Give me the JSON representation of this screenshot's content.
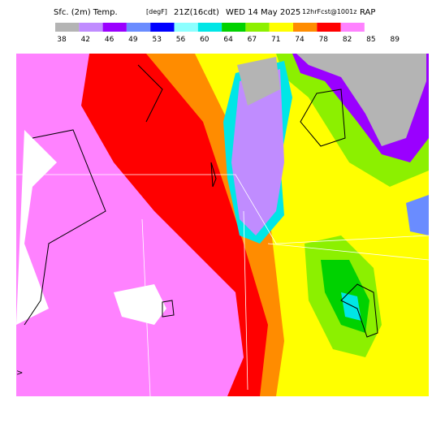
{
  "header": {
    "field": "Sfc. (2m) Temp.",
    "units": "[degF]",
    "valid": "21Z(16cdt)",
    "date": "WED 14 May 2025",
    "forecast": "12hrFcst@1001z",
    "model": "RAP"
  },
  "legend": {
    "items": [
      {
        "label": "38",
        "color": "#b4b4b4"
      },
      {
        "label": "42",
        "color": "#c08cff"
      },
      {
        "label": "46",
        "color": "#9a00ff"
      },
      {
        "label": "49",
        "color": "#6a8cff"
      },
      {
        "label": "53",
        "color": "#0000ff"
      },
      {
        "label": "56",
        "color": "#8cffff"
      },
      {
        "label": "60",
        "color": "#00e6e6"
      },
      {
        "label": "64",
        "color": "#00d200"
      },
      {
        "label": "67",
        "color": "#8cf000"
      },
      {
        "label": "71",
        "color": "#ffff00"
      },
      {
        "label": "74",
        "color": "#ff8c00"
      },
      {
        "label": "78",
        "color": "#ff0000"
      },
      {
        "label": "82",
        "color": "#ff82ff"
      },
      {
        "label": "85",
        "color": "#ffffff"
      },
      {
        "label": "89",
        "color": "#ffffff"
      }
    ]
  },
  "map": {
    "edge_marker": ">"
  }
}
